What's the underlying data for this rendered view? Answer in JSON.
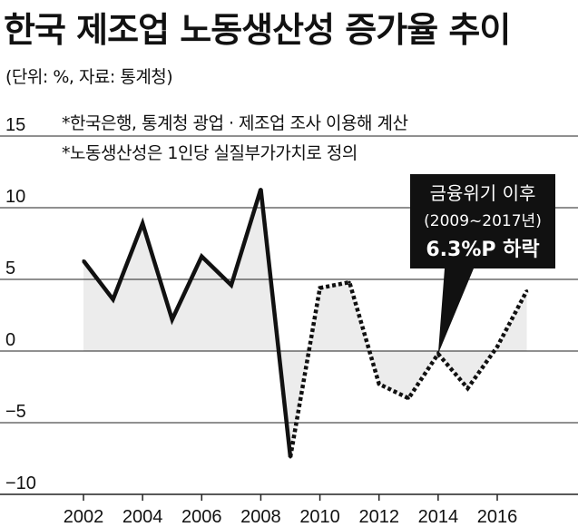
{
  "title": "한국 제조업 노동생산성 증가율 추이",
  "subtitle": "(단위: %, 자료: 통계청)",
  "colors": {
    "line": "#111111",
    "fill": "#ececec",
    "grid": "#222222",
    "callout_bg": "#111111",
    "callout_text": "#ffffff"
  },
  "chart_data": {
    "type": "line",
    "x": [
      2002,
      2003,
      2004,
      2005,
      2006,
      2007,
      2008,
      2009,
      2010,
      2011,
      2012,
      2013,
      2014,
      2015,
      2016,
      2017
    ],
    "series": [
      {
        "style": "solid",
        "x": [
          2002,
          2003,
          2004,
          2005,
          2006,
          2007,
          2008,
          2009
        ],
        "values": [
          6.3,
          3.6,
          8.9,
          2.2,
          6.6,
          4.6,
          11.3,
          -7.4
        ]
      },
      {
        "style": "dotted",
        "x": [
          2009,
          2010,
          2011,
          2012,
          2013,
          2014,
          2015,
          2016,
          2017
        ],
        "values": [
          -7.4,
          4.4,
          4.8,
          -2.3,
          -3.3,
          -0.2,
          -2.6,
          0.3,
          4.2
        ]
      }
    ],
    "xticks": [
      "2002",
      "2004",
      "2006",
      "2008",
      "2010",
      "2012",
      "2014",
      "2016"
    ],
    "yticks": [
      "15",
      "10",
      "5",
      "0",
      "−5",
      "−10"
    ],
    "ylim": [
      -10,
      15
    ],
    "grid": "horizontal",
    "area_fill": true,
    "notes": [
      "*한국은행, 통계청 광업 · 제조업 조사 이용해 계산",
      "*노동생산성은 1인당 실질부가가치로 정의"
    ],
    "callout": {
      "lines": [
        "금융위기 이후",
        "(2009~2017년)",
        "6.3%P 하락"
      ],
      "pointer_x": 2014,
      "pointer_y": -0.2
    }
  }
}
